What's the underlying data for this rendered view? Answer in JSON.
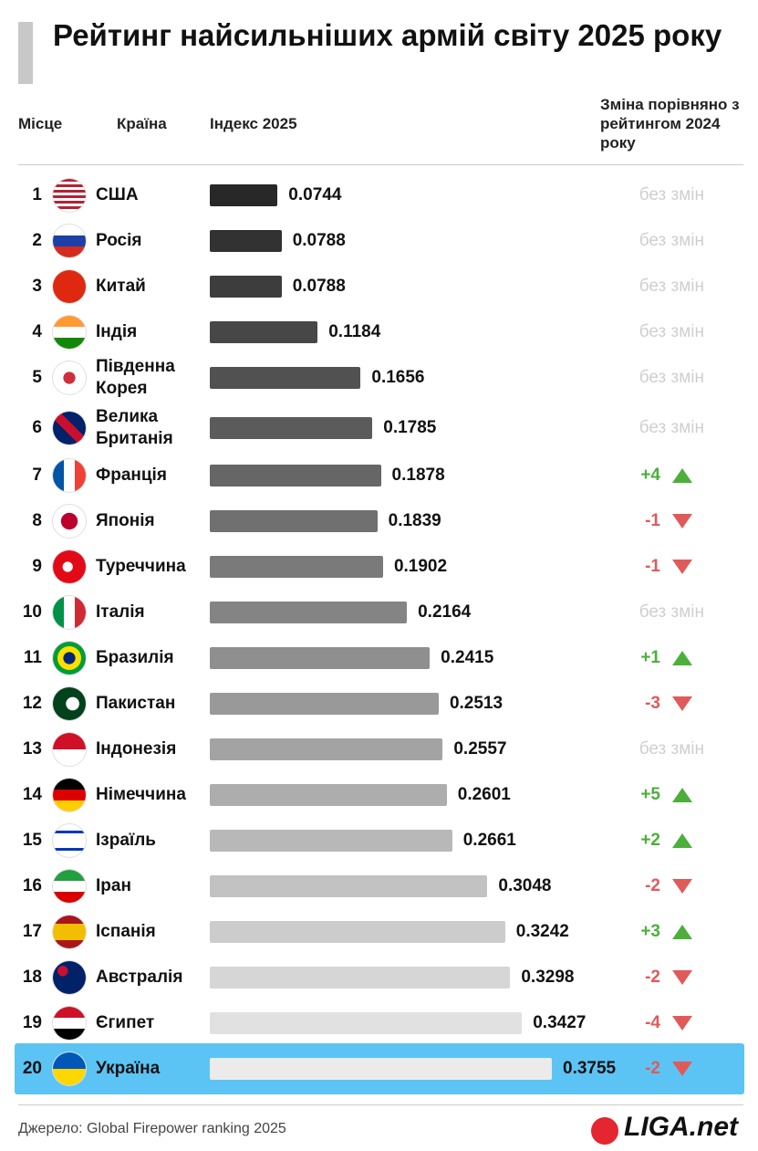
{
  "chart_data": {
    "type": "bar",
    "title": "Рейтинг найсильніших армій світу 2025 року",
    "column_headers": [
      "Місце",
      "Країна",
      "Індекс 2025",
      "Зміна порівняно з рейтингом 2024 року"
    ],
    "ranks": [
      1,
      2,
      3,
      4,
      5,
      6,
      7,
      8,
      9,
      10,
      11,
      12,
      13,
      14,
      15,
      16,
      17,
      18,
      19,
      20
    ],
    "categories": [
      "США",
      "Росія",
      "Китай",
      "Індія",
      "Південна Корея",
      "Велика Британія",
      "Франція",
      "Японія",
      "Туреччина",
      "Італія",
      "Бразилія",
      "Пакистан",
      "Індонезія",
      "Німеччина",
      "Ізраїль",
      "Іран",
      "Іспанія",
      "Австралія",
      "Єгипет",
      "Україна"
    ],
    "values": [
      0.0744,
      0.0788,
      0.0788,
      0.1184,
      0.1656,
      0.1785,
      0.1878,
      0.1839,
      0.1902,
      0.2164,
      0.2415,
      0.2513,
      0.2557,
      0.2601,
      0.2661,
      0.3048,
      0.3242,
      0.3298,
      0.3427,
      0.3755
    ],
    "changes": [
      "без змін",
      "без змін",
      "без змін",
      "без змін",
      "без змін",
      "без змін",
      "+4",
      "-1",
      "-1",
      "без змін",
      "+1",
      "-3",
      "без змін",
      "+5",
      "+2",
      "-2",
      "+3",
      "-2",
      "-4",
      "-2"
    ],
    "source": "Джерело: Global Firepower ranking 2025",
    "logo": "LIGA.net"
  }
}
